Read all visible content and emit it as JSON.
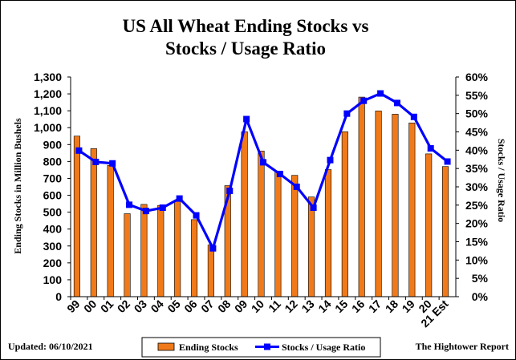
{
  "chart_data": {
    "type": "bar",
    "title_line1": "US All Wheat Ending Stocks vs",
    "title_line2": "Stocks / Usage Ratio",
    "ylabel_left": "Ending Stocks in Million Bushels",
    "ylabel_right": "Stocks / Usage Ratio",
    "categories": [
      "99",
      "00",
      "01",
      "02",
      "03",
      "04",
      "05",
      "06",
      "07",
      "08",
      "09",
      "10",
      "11",
      "12",
      "13",
      "14",
      "15",
      "16",
      "17",
      "18",
      "19",
      "20",
      "21 Est"
    ],
    "left_axis": {
      "min": 0,
      "max": 1300,
      "step": 100,
      "tick_labels": [
        "0",
        "100",
        "200",
        "300",
        "400",
        "500",
        "600",
        "700",
        "800",
        "900",
        "1,000",
        "1,100",
        "1,200",
        "1,300"
      ]
    },
    "right_axis": {
      "min": 0,
      "max": 60,
      "step": 5,
      "tick_labels": [
        "0%",
        "5%",
        "10%",
        "15%",
        "20%",
        "25%",
        "30%",
        "35%",
        "40%",
        "45%",
        "50%",
        "55%",
        "60%"
      ]
    },
    "series": [
      {
        "name": "Ending Stocks",
        "type": "bar",
        "axis": "left",
        "color": "#f07a1a",
        "values": [
          950,
          876,
          777,
          491,
          546,
          540,
          571,
          456,
          306,
          657,
          976,
          862,
          743,
          718,
          590,
          752,
          976,
          1181,
          1099,
          1080,
          1028,
          845,
          770
        ]
      },
      {
        "name": "Stocks / Usage Ratio",
        "type": "line",
        "axis": "right",
        "color": "#0000ff",
        "values": [
          39.9,
          36.8,
          36.4,
          25.1,
          23.4,
          24.3,
          26.8,
          22.2,
          13.2,
          28.9,
          48.5,
          36.7,
          33.5,
          30.0,
          24.3,
          37.3,
          50.0,
          53.5,
          55.5,
          52.9,
          49.1,
          40.5,
          36.9
        ]
      }
    ],
    "grid": false,
    "legend_position": "bottom"
  },
  "footer": {
    "updated": "Updated: 06/10/2021",
    "source": "The Hightower Report"
  }
}
